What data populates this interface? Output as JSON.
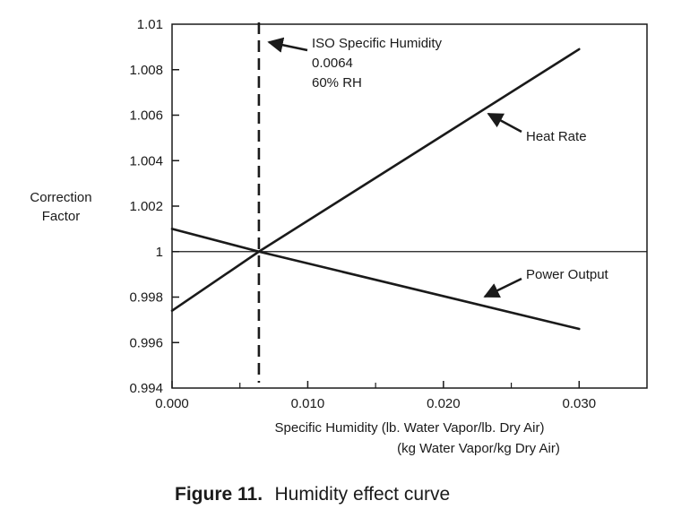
{
  "chart_data": {
    "type": "line",
    "xlabel": [
      "Specific Humidity (lb. Water Vapor/lb. Dry Air)",
      "(kg Water Vapor/kg Dry Air)"
    ],
    "ylabel": [
      "Correction",
      "Factor"
    ],
    "xlim": [
      0.0,
      0.035
    ],
    "ylim": [
      0.994,
      1.01
    ],
    "x_ticks": [
      0.0,
      0.01,
      0.02,
      0.03
    ],
    "x_tick_labels": [
      "0.000",
      "0.010",
      "0.020",
      "0.030"
    ],
    "x_minor_ticks": [
      0.005,
      0.015,
      0.025
    ],
    "y_ticks": [
      0.994,
      0.996,
      0.998,
      1.0,
      1.002,
      1.004,
      1.006,
      1.008,
      1.01
    ],
    "y_tick_labels": [
      "0.994",
      "0.996",
      "0.998",
      "1",
      "1.002",
      "1.004",
      "1.006",
      "1.008",
      "1.01"
    ],
    "reference_line_y": 1.0,
    "grid": false,
    "series": [
      {
        "name": "Heat Rate",
        "x": [
          0.0,
          0.0064,
          0.03
        ],
        "y": [
          0.9974,
          1.0,
          1.0089
        ]
      },
      {
        "name": "Power Output",
        "x": [
          0.0,
          0.0064,
          0.03
        ],
        "y": [
          1.001,
          1.0,
          0.9966
        ]
      }
    ],
    "vertical_marker": {
      "x": 0.0064,
      "label_lines": [
        "ISO Specific Humidity",
        "0.0064",
        "60% RH"
      ]
    },
    "annotations": [
      {
        "text": "Heat Rate",
        "points_to": {
          "x": 0.023,
          "y": 1.0062
        }
      },
      {
        "text": "Power Output",
        "points_to": {
          "x": 0.023,
          "y": 0.9981
        }
      }
    ]
  },
  "caption": {
    "label": "Figure 11.",
    "text": "Humidity effect curve"
  }
}
